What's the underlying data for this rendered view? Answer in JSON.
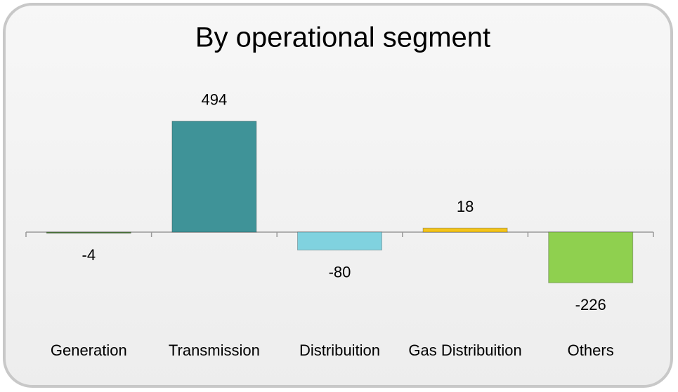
{
  "chart_data": {
    "type": "bar",
    "title": "By operational segment",
    "categories": [
      "Generation",
      "Transmission",
      "Distribuition",
      "Gas Distribuition",
      "Others"
    ],
    "values": [
      -4,
      494,
      -80,
      18,
      -226
    ],
    "colors": [
      "#4e7b3c",
      "#3f9398",
      "#80d2df",
      "#f4c41a",
      "#8fd04f"
    ]
  }
}
